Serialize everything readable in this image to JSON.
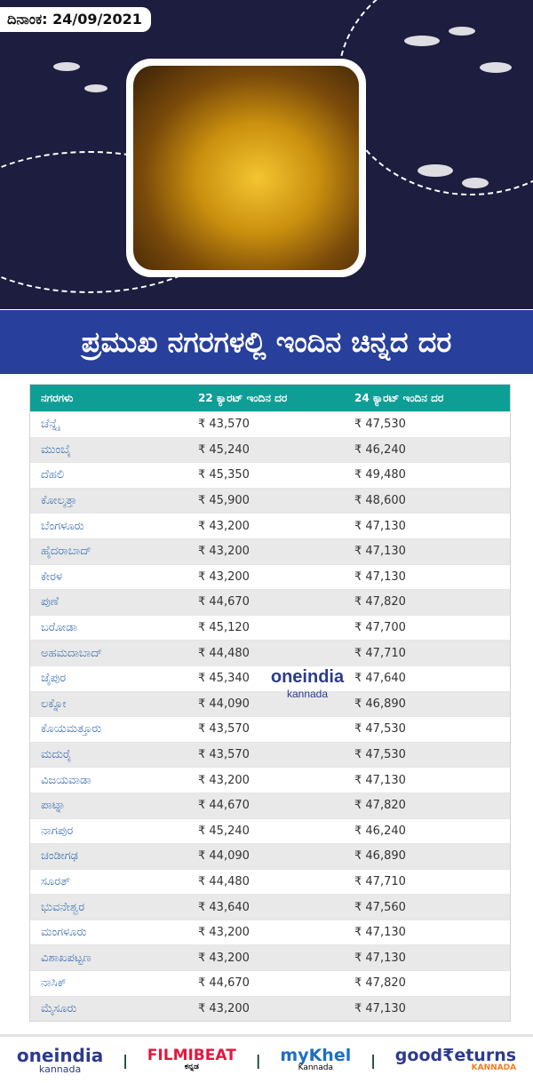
{
  "header": {
    "date": "ದಿನಾಂಕ: 24/09/2021"
  },
  "banner": {
    "title": "ಪ್ರಮುಖ ನಗರಗಳಲ್ಲಿ ಇಂದಿನ ಚಿನ್ನದ ದರ"
  },
  "table": {
    "headers": [
      "ನಗರಗಳು",
      "22 ಕ್ಯಾರಟ್ ಇಂದಿನ ದರ",
      "24 ಕ್ಯಾರಟ್ ಇಂದಿನ ದರ"
    ],
    "rows": [
      [
        "ಚೆನ್ನೈ",
        "₹ 43,570",
        "₹ 47,530"
      ],
      [
        "ಮುಂಬೈ",
        "₹ 45,240",
        "₹ 46,240"
      ],
      [
        "ದೆಹಲಿ",
        "₹ 45,350",
        "₹ 49,480"
      ],
      [
        "ಕೋಲ್ಕತ್ತಾ",
        "₹ 45,900",
        "₹ 48,600"
      ],
      [
        "ಬೆಂಗಳೂರು",
        "₹ 43,200",
        "₹ 47,130"
      ],
      [
        "ಹೈದರಾಬಾದ್",
        "₹ 43,200",
        "₹ 47,130"
      ],
      [
        "ಕೇರಳ",
        "₹ 43,200",
        "₹ 47,130"
      ],
      [
        "ಪುಣೆ",
        "₹ 44,670",
        "₹ 47,820"
      ],
      [
        "ಬರೋಡಾ",
        "₹ 45,120",
        "₹ 47,700"
      ],
      [
        "ಅಹಮದಾಬಾದ್",
        "₹ 44,480",
        "₹ 47,710"
      ],
      [
        "ಜೈಪುರ",
        "₹ 45,340",
        "₹ 47,640"
      ],
      [
        "ಲಕ್ನೋ",
        "₹ 44,090",
        "₹ 46,890"
      ],
      [
        "ಕೊಯಮತ್ತೂರು",
        "₹ 43,570",
        "₹ 47,530"
      ],
      [
        "ಮದುರೈ",
        "₹ 43,570",
        "₹ 47,530"
      ],
      [
        "ವಿಜಯವಾಡಾ",
        "₹ 43,200",
        "₹ 47,130"
      ],
      [
        "ಪಾಟ್ನಾ",
        "₹ 44,670",
        "₹ 47,820"
      ],
      [
        "ನಾಗಪುರ",
        "₹ 45,240",
        "₹ 46,240"
      ],
      [
        "ಚಂಡೀಗಢ",
        "₹ 44,090",
        "₹ 46,890"
      ],
      [
        "ಸೂರತ್",
        "₹ 44,480",
        "₹ 47,710"
      ],
      [
        "ಭುವನೇಶ್ವರ",
        "₹ 43,640",
        "₹ 47,560"
      ],
      [
        "ಮಂಗಳೂರು",
        "₹ 43,200",
        "₹ 47,130"
      ],
      [
        "ವಿಶಾಖಪಟ್ಟಣ",
        "₹ 43,200",
        "₹ 47,130"
      ],
      [
        "ನಾಸಿಕ್",
        "₹ 44,670",
        "₹ 47,820"
      ],
      [
        "ಮೈಸೂರು",
        "₹ 43,200",
        "₹ 47,130"
      ]
    ]
  },
  "watermark": {
    "brand": "oneindia",
    "sub": "kannada"
  },
  "footer": {
    "logos": [
      {
        "name": "oneindia",
        "sub": "kannada"
      },
      {
        "name": "FILMIBEAT",
        "sub": "ಕನ್ನಡ"
      },
      {
        "name": "myKhel",
        "sub": "Kannada"
      },
      {
        "name": "good₹eturns",
        "sub": "KANNADA"
      }
    ],
    "separator": "|"
  },
  "colors": {
    "hero_bg": "#1c1d3f",
    "banner": "#283f9b",
    "table_header": "#0f9e96",
    "city_text": "#3b6fb5"
  }
}
